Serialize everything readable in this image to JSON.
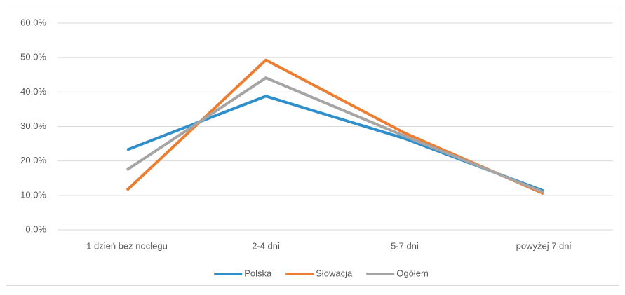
{
  "chart_data": {
    "type": "line",
    "categories": [
      "1 dzień bez noclegu",
      "2-4 dni",
      "5-7 dni",
      "powyżej 7 dni"
    ],
    "series": [
      {
        "name": "Polska",
        "color": "#2e8fcb",
        "values": [
          23.2,
          38.8,
          26.5,
          11.3
        ]
      },
      {
        "name": "Słowacja",
        "color": "#ed7d31",
        "values": [
          11.5,
          49.3,
          28.1,
          10.5
        ]
      },
      {
        "name": "Ogółem",
        "color": "#a5a5a5",
        "values": [
          17.4,
          44.1,
          27.2,
          10.9
        ]
      }
    ],
    "ylim": [
      0,
      60
    ],
    "yticks": [
      {
        "value": 0,
        "label": "0,0%"
      },
      {
        "value": 10,
        "label": "10,0%"
      },
      {
        "value": 20,
        "label": "20,0%"
      },
      {
        "value": 30,
        "label": "30,0%"
      },
      {
        "value": 40,
        "label": "40,0%"
      },
      {
        "value": 50,
        "label": "50,0%"
      },
      {
        "value": 60,
        "label": "60,0%"
      }
    ],
    "grid": true,
    "legend": "bottom"
  }
}
